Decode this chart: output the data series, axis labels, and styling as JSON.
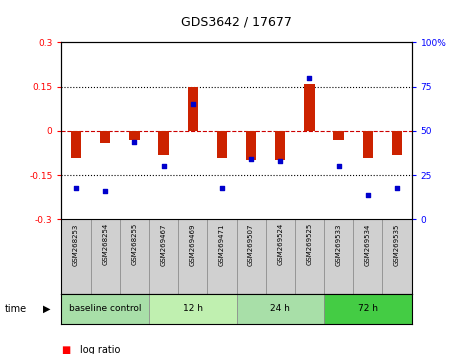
{
  "title": "GDS3642 / 17677",
  "samples": [
    "GSM268253",
    "GSM268254",
    "GSM268255",
    "GSM269467",
    "GSM269469",
    "GSM269471",
    "GSM269507",
    "GSM269524",
    "GSM269525",
    "GSM269533",
    "GSM269534",
    "GSM269535"
  ],
  "log_ratio": [
    -0.09,
    -0.04,
    -0.03,
    -0.08,
    0.15,
    -0.09,
    -0.1,
    -0.1,
    0.16,
    -0.03,
    -0.09,
    -0.08
  ],
  "percentile_rank": [
    18,
    16,
    44,
    30,
    65,
    18,
    34,
    33,
    80,
    30,
    14,
    18
  ],
  "groups": [
    {
      "label": "baseline control",
      "start": 0,
      "end": 3,
      "color": "#a8dfa8"
    },
    {
      "label": "12 h",
      "start": 3,
      "end": 6,
      "color": "#c0f0b0"
    },
    {
      "label": "24 h",
      "start": 6,
      "end": 9,
      "color": "#a8dfa8"
    },
    {
      "label": "72 h",
      "start": 9,
      "end": 12,
      "color": "#44cc44"
    }
  ],
  "ylim": [
    -0.3,
    0.3
  ],
  "bar_color": "#cc2200",
  "dot_color": "#0000cc",
  "hline0_color": "#cc0000",
  "cell_bg": "#d0d0d0"
}
